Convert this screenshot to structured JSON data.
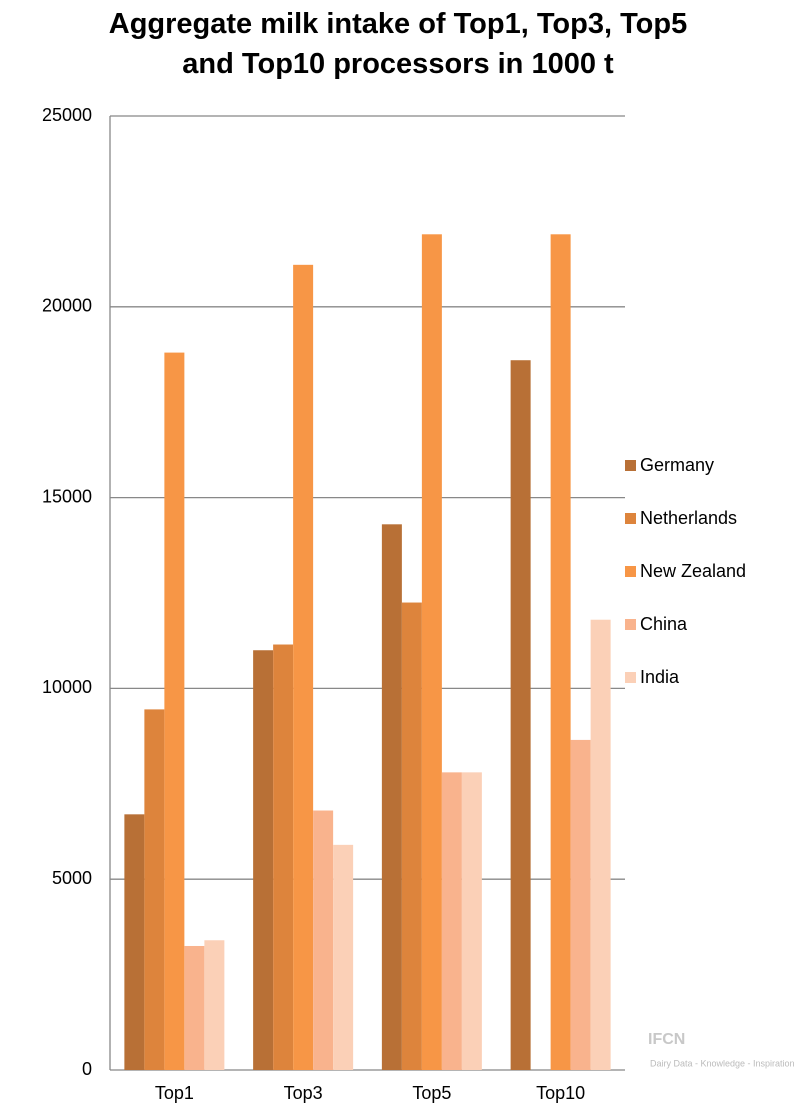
{
  "chart_data": {
    "type": "bar",
    "title": "Aggregate milk intake of Top1, Top3, Top5 and Top10 processors in 1000 t",
    "categories": [
      "Top1",
      "Top3",
      "Top5",
      "Top10"
    ],
    "series": [
      {
        "name": "Germany",
        "color": "#b87036",
        "values": [
          6700,
          11000,
          14300,
          18600
        ]
      },
      {
        "name": "Netherlands",
        "color": "#dd843c",
        "values": [
          9450,
          11150,
          12250,
          null
        ]
      },
      {
        "name": "New Zealand",
        "color": "#f79646",
        "values": [
          18800,
          21100,
          21900,
          21900
        ]
      },
      {
        "name": "China",
        "color": "#f9b38d",
        "values": [
          3250,
          6800,
          7800,
          8650
        ]
      },
      {
        "name": "India",
        "color": "#fbd0b7",
        "values": [
          3400,
          5900,
          7800,
          11800
        ]
      }
    ],
    "ylim": [
      0,
      25000
    ],
    "yticks": [
      0,
      5000,
      10000,
      15000,
      20000,
      25000
    ],
    "grid": true,
    "legend": "right",
    "watermark": [
      "IFCN",
      "Dairy Data - Knowledge - Inspiration"
    ]
  }
}
